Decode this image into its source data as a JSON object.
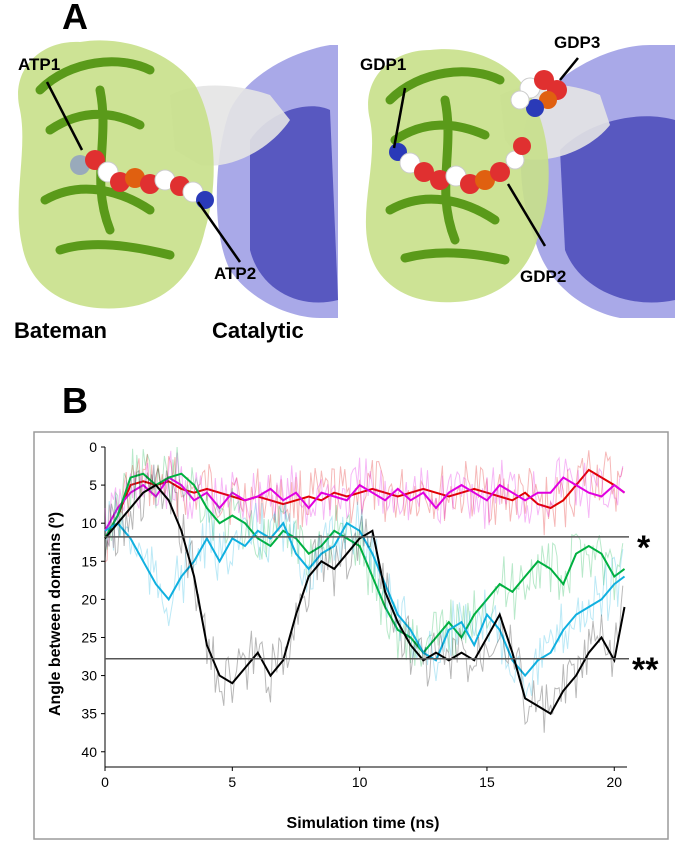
{
  "panel_a": {
    "letter": "A",
    "left_structure": {
      "labels": [
        "ATP1",
        "ATP2"
      ]
    },
    "right_structure": {
      "labels": [
        "GDP1",
        "GDP3",
        "GDP2"
      ]
    },
    "domain_labels": [
      "Bateman",
      "Catalytic"
    ],
    "colors": {
      "bateman": "#5a9a1a",
      "bateman_surface": "#c8e08a",
      "catalytic": "#5555c8",
      "linker": "#e6e6e6"
    }
  },
  "panel_b": {
    "letter": "B",
    "markers": [
      "*",
      "**"
    ]
  },
  "chart_data": {
    "type": "line",
    "xlabel": "Simulation time (ns)",
    "ylabel": "Angle between domains (º)",
    "xlim": [
      0,
      20.5
    ],
    "ylim": [
      0,
      42
    ],
    "y_inverted": true,
    "x_ticks": [
      0,
      5,
      10,
      15,
      20
    ],
    "y_ticks": [
      0,
      5,
      10,
      15,
      20,
      25,
      30,
      35,
      40
    ],
    "reference_lines": [
      {
        "y": 11.8,
        "marker": "*"
      },
      {
        "y": 27.8,
        "marker": "**"
      }
    ],
    "series": [
      {
        "color": "#e00000",
        "x": [
          0,
          0.5,
          1,
          1.5,
          2,
          2.5,
          3,
          3.5,
          4,
          4.5,
          5,
          5.5,
          6,
          6.5,
          7,
          7.5,
          8,
          8.5,
          9,
          9.5,
          10,
          10.5,
          11,
          11.5,
          12,
          12.5,
          13,
          13.5,
          14,
          14.5,
          15,
          15.5,
          16,
          16.5,
          17,
          17.5,
          18,
          18.5,
          19,
          19.5,
          20,
          20.4
        ],
        "y": [
          12,
          9,
          5,
          4.5,
          5,
          4.5,
          5.5,
          6,
          5.5,
          6,
          6.5,
          7,
          6.5,
          7,
          7.5,
          7,
          6.5,
          7,
          6,
          6.5,
          6,
          5.5,
          6,
          6.5,
          6,
          5.5,
          6,
          6.5,
          6,
          5.5,
          6,
          6.5,
          7,
          6,
          7.5,
          8,
          7,
          5,
          3,
          4,
          5,
          6
        ]
      },
      {
        "color": "#e000e0",
        "x": [
          0,
          0.5,
          1,
          1.5,
          2,
          2.5,
          3,
          3.5,
          4,
          4.5,
          5,
          5.5,
          6,
          6.5,
          7,
          7.5,
          8,
          8.5,
          9,
          9.5,
          10,
          10.5,
          11,
          11.5,
          12,
          12.5,
          13,
          13.5,
          14,
          14.5,
          15,
          15.5,
          16,
          16.5,
          17,
          17.5,
          18,
          18.5,
          19,
          19.5,
          20,
          20.4
        ],
        "y": [
          11,
          8,
          6,
          5,
          6.5,
          4,
          5,
          7,
          6,
          8,
          6,
          7,
          6.5,
          5.5,
          7,
          6,
          8,
          6,
          6.5,
          7,
          5,
          6,
          7,
          5.5,
          7,
          6,
          8,
          6,
          5,
          6,
          7,
          5,
          6,
          7,
          6,
          6,
          4,
          5,
          6,
          6.5,
          5,
          6
        ]
      },
      {
        "color": "#00b040",
        "x": [
          0,
          0.5,
          1,
          1.5,
          2,
          2.5,
          3,
          3.5,
          4,
          4.5,
          5,
          5.5,
          6,
          6.5,
          7,
          7.5,
          8,
          8.5,
          9,
          9.5,
          10,
          10.5,
          11,
          11.5,
          12,
          12.5,
          13,
          13.5,
          14,
          14.5,
          15,
          15.5,
          16,
          16.5,
          17,
          17.5,
          18,
          18.5,
          19,
          19.5,
          20,
          20.4
        ],
        "y": [
          12,
          9,
          4,
          3.5,
          5,
          4,
          3.5,
          5,
          8,
          10,
          9,
          10,
          12,
          13,
          11,
          12,
          14,
          13,
          11,
          12,
          13,
          17,
          21,
          24,
          25,
          27,
          25,
          23,
          25,
          22,
          20,
          18,
          19,
          17,
          15,
          16,
          18,
          14,
          13,
          14,
          17,
          16
        ]
      },
      {
        "color": "#10b0e0",
        "x": [
          0,
          0.5,
          1,
          1.5,
          2,
          2.5,
          3,
          3.5,
          4,
          4.5,
          5,
          5.5,
          6,
          6.5,
          7,
          7.5,
          8,
          8.5,
          9,
          9.5,
          10,
          10.5,
          11,
          11.5,
          12,
          12.5,
          13,
          13.5,
          14,
          14.5,
          15,
          15.5,
          16,
          16.5,
          17,
          17.5,
          18,
          18.5,
          19,
          19.5,
          20,
          20.4
        ],
        "y": [
          11,
          10,
          12,
          15,
          18,
          20,
          17,
          15,
          12,
          15,
          12,
          13,
          11,
          12,
          10,
          14,
          16,
          14,
          13,
          10,
          11,
          14,
          18,
          22,
          24,
          27,
          28,
          24,
          23,
          26,
          22,
          24,
          28,
          30,
          28,
          27,
          24,
          22,
          21,
          20,
          18,
          17
        ]
      },
      {
        "color": "#000000",
        "x": [
          0,
          0.5,
          1,
          1.5,
          2,
          2.5,
          3,
          3.5,
          4,
          4.5,
          5,
          5.5,
          6,
          6.5,
          7,
          7.5,
          8,
          8.5,
          9,
          9.5,
          10,
          10.5,
          11,
          11.5,
          12,
          12.5,
          13,
          13.5,
          14,
          14.5,
          15,
          15.5,
          16,
          16.5,
          17,
          17.5,
          18,
          18.5,
          19,
          19.5,
          20,
          20.4
        ],
        "y": [
          12,
          10,
          8,
          6,
          5,
          7,
          11,
          17,
          26,
          30,
          31,
          29,
          27,
          30,
          28,
          22,
          17,
          15,
          16,
          14,
          12,
          11,
          19,
          23,
          26,
          28,
          27,
          28,
          27,
          28,
          25,
          22,
          27,
          33,
          34,
          35,
          32,
          30,
          27,
          25,
          28,
          21
        ]
      }
    ]
  }
}
